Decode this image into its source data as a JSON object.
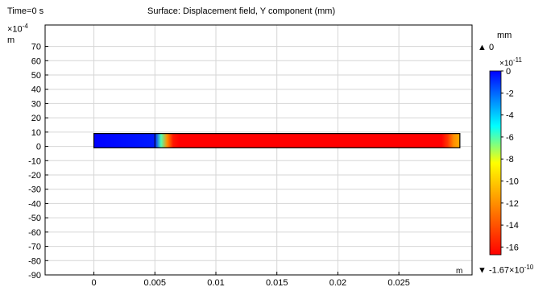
{
  "header": {
    "time_label": "Time=0 s",
    "title": "Surface: Displacement field, Y component (mm)"
  },
  "chart_data": {
    "type": "heatmap",
    "title": "Surface: Displacement field, Y component (mm)",
    "x_unit": "m",
    "y_unit": "m",
    "y_exponent_prefix": "×10",
    "y_exponent": "-4",
    "xlim": [
      -0.004,
      0.031
    ],
    "ylim": [
      -90,
      85
    ],
    "x_ticks": [
      0,
      0.005,
      0.01,
      0.015,
      0.02,
      0.025
    ],
    "x_tick_labels": [
      "0",
      "0.005",
      "0.01",
      "0.015",
      "0.02",
      "0.025"
    ],
    "y_ticks": [
      70,
      60,
      50,
      40,
      30,
      20,
      10,
      0,
      -10,
      -20,
      -30,
      -40,
      -50,
      -60,
      -70,
      -80,
      -90
    ],
    "y_tick_labels": [
      "70",
      "60",
      "50",
      "40",
      "30",
      "20",
      "10",
      "0",
      "-10",
      "-20",
      "-30",
      "-40",
      "-50",
      "-60",
      "-70",
      "-80",
      "-90"
    ],
    "beam": {
      "x_start": 0,
      "x_end": 0.03,
      "y_bottom": -1,
      "y_top": 9,
      "step_x": 0.005,
      "displacement_profile": [
        {
          "x": 0,
          "value": 0
        },
        {
          "x": 0.005,
          "value": -0.5
        },
        {
          "x": 0.0055,
          "value": -6
        },
        {
          "x": 0.006,
          "value": -12
        },
        {
          "x": 0.0065,
          "value": -16
        },
        {
          "x": 0.007,
          "value": -16.7
        },
        {
          "x": 0.0285,
          "value": -16.7
        },
        {
          "x": 0.029,
          "value": -15
        },
        {
          "x": 0.0295,
          "value": -12
        },
        {
          "x": 0.03,
          "value": -11
        }
      ]
    },
    "colorbar": {
      "unit": "mm",
      "max_label": "0",
      "min_label": "-1.67×10",
      "min_exponent": "-10",
      "exponent_prefix": "×10",
      "exponent": "-11",
      "range": [
        -16.7,
        0
      ],
      "ticks": [
        0,
        -2,
        -4,
        -6,
        -8,
        -10,
        -12,
        -14,
        -16
      ],
      "tick_labels": [
        "0",
        "-2",
        "-4",
        "-6",
        "-8",
        "-10",
        "-12",
        "-14",
        "-16"
      ],
      "colormap": [
        {
          "value": 0,
          "color": "#0000ff"
        },
        {
          "value": -2.5,
          "color": "#0080ff"
        },
        {
          "value": -5,
          "color": "#00ffff"
        },
        {
          "value": -8.35,
          "color": "#ffff00"
        },
        {
          "value": -12.5,
          "color": "#ff8000"
        },
        {
          "value": -16.7,
          "color": "#ff0000"
        }
      ]
    }
  }
}
